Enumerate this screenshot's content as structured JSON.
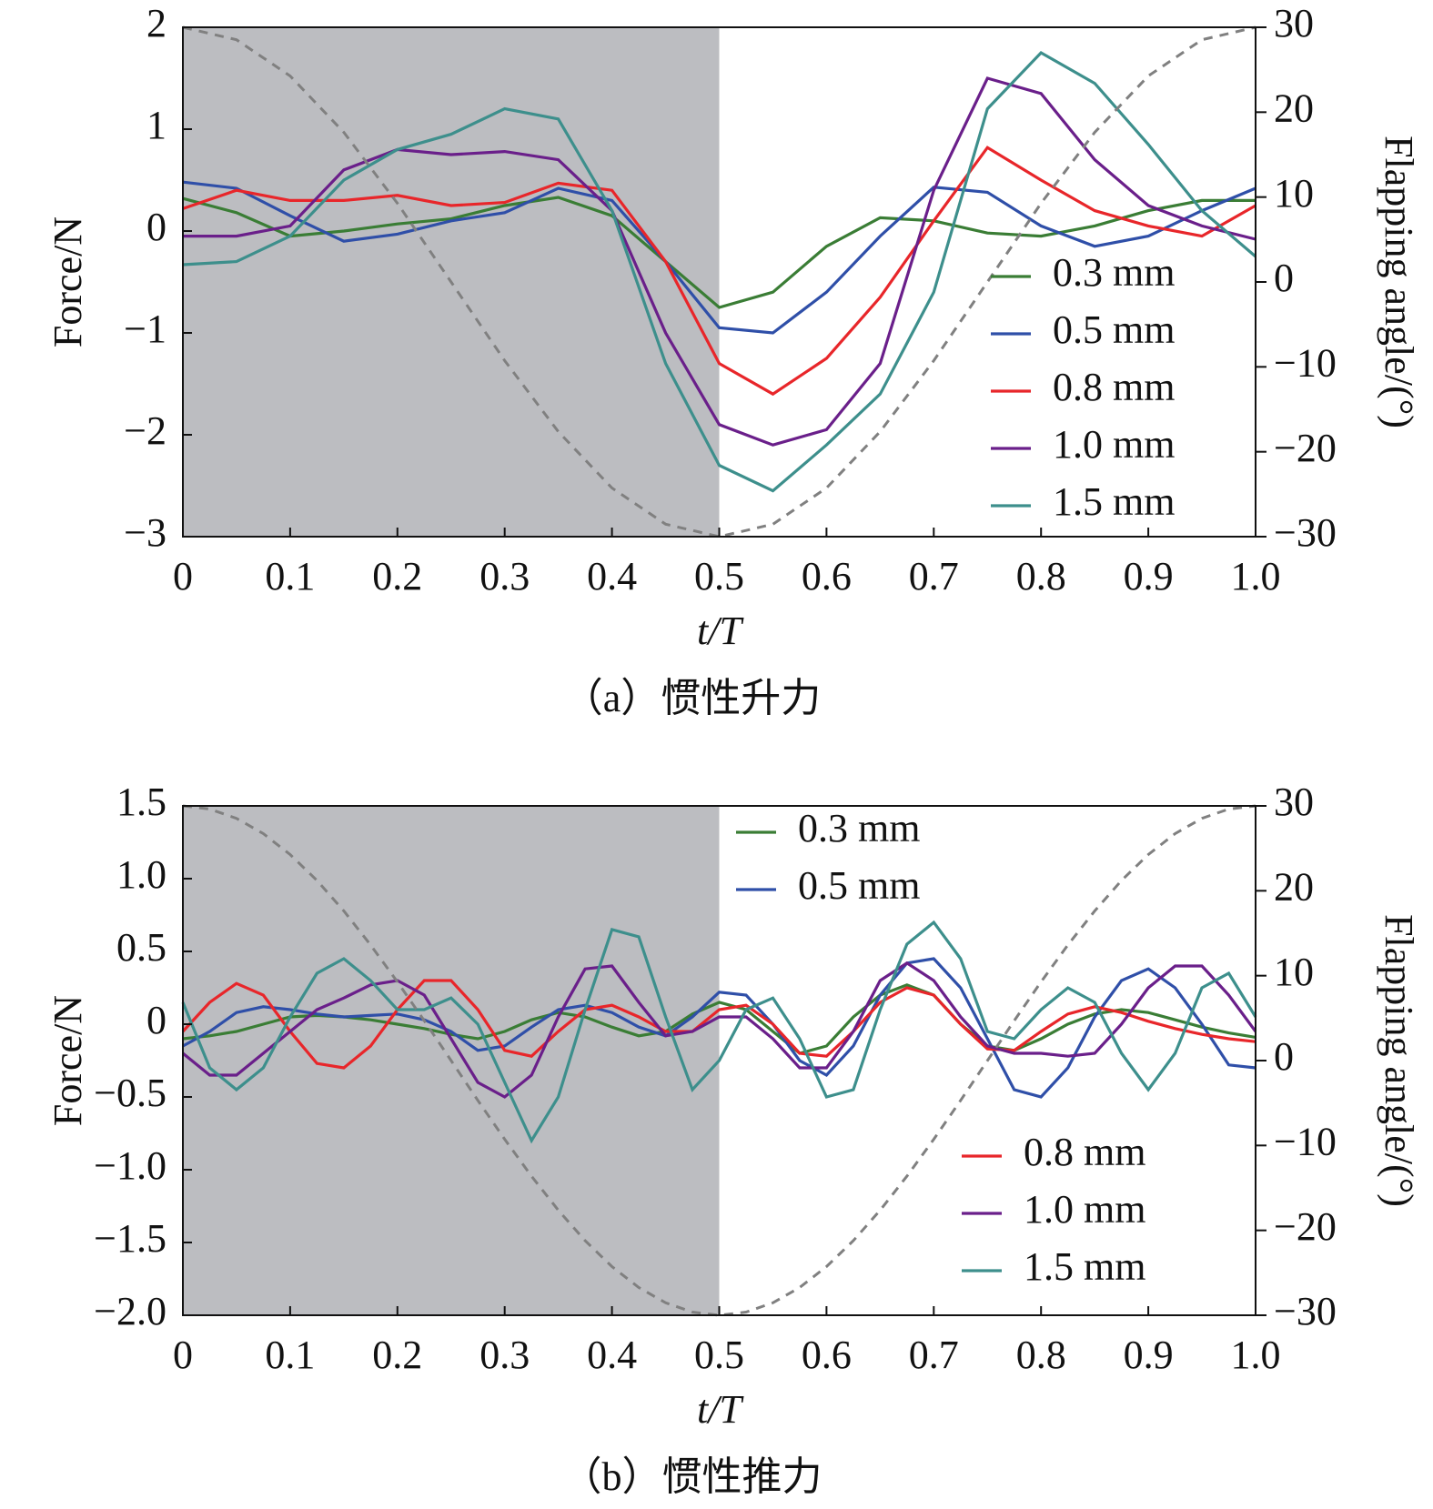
{
  "chart_data": [
    {
      "type": "line",
      "caption": "（a）惯性升力",
      "xlabel": "t/T",
      "ylabel": "Force/N",
      "y2label": "Flapping angle/(°)",
      "x": [
        0,
        0.05,
        0.1,
        0.15,
        0.2,
        0.25,
        0.3,
        0.35,
        0.4,
        0.45,
        0.5,
        0.55,
        0.6,
        0.65,
        0.7,
        0.75,
        0.8,
        0.85,
        0.9,
        0.95,
        1.0
      ],
      "xlim": [
        0,
        1
      ],
      "xticks": [
        0,
        0.1,
        0.2,
        0.3,
        0.4,
        0.5,
        0.6,
        0.7,
        0.8,
        0.9,
        {
          "value": 1,
          "label": "1.0"
        }
      ],
      "ylim": [
        -3,
        2
      ],
      "yticks": [
        {
          "value": -3,
          "label": "−3"
        },
        {
          "value": -2,
          "label": "−2"
        },
        {
          "value": -1,
          "label": "−1"
        },
        0,
        1,
        2
      ],
      "y2lim": [
        -30,
        30
      ],
      "y2ticks": [
        {
          "value": -30,
          "label": "−30"
        },
        {
          "value": -20,
          "label": "−20"
        },
        {
          "value": -10,
          "label": "−10"
        },
        0,
        10,
        20,
        30
      ],
      "shaded_xrange": [
        0,
        0.5
      ],
      "shade_color": "#bcbdc1",
      "series": [
        {
          "name": "0.3 mm",
          "color": "#3a7d35",
          "values": [
            0.32,
            0.18,
            -0.05,
            0.0,
            0.07,
            0.12,
            0.25,
            0.33,
            0.15,
            -0.3,
            -0.75,
            -0.6,
            -0.15,
            0.13,
            0.1,
            -0.02,
            -0.05,
            0.05,
            0.2,
            0.3,
            0.3
          ]
        },
        {
          "name": "0.5 mm",
          "color": "#2f4fa8",
          "values": [
            0.48,
            0.42,
            0.15,
            -0.1,
            -0.03,
            0.1,
            0.18,
            0.42,
            0.3,
            -0.3,
            -0.95,
            -1.0,
            -0.6,
            -0.05,
            0.43,
            0.38,
            0.05,
            -0.15,
            -0.05,
            0.2,
            0.42
          ]
        },
        {
          "name": "0.8 mm",
          "color": "#e8262a",
          "values": [
            0.22,
            0.4,
            0.3,
            0.3,
            0.35,
            0.25,
            0.28,
            0.47,
            0.4,
            -0.3,
            -1.3,
            -1.6,
            -1.25,
            -0.65,
            0.1,
            0.82,
            0.5,
            0.2,
            0.05,
            -0.05,
            0.25
          ]
        },
        {
          "name": "1.0 mm",
          "color": "#6a1f8a",
          "values": [
            -0.05,
            -0.05,
            0.05,
            0.6,
            0.8,
            0.75,
            0.78,
            0.7,
            0.2,
            -1.0,
            -1.9,
            -2.1,
            -1.95,
            -1.3,
            0.4,
            1.5,
            1.35,
            0.7,
            0.25,
            0.05,
            -0.08
          ]
        },
        {
          "name": "1.5 mm",
          "color": "#3d8f8c",
          "values": [
            -0.33,
            -0.3,
            -0.05,
            0.5,
            0.8,
            0.95,
            1.2,
            1.1,
            0.2,
            -1.3,
            -2.3,
            -2.55,
            -2.1,
            -1.6,
            -0.6,
            1.2,
            1.75,
            1.45,
            0.85,
            0.2,
            -0.25
          ]
        },
        {
          "axis": "y2",
          "color": "#808080",
          "dashed": true,
          "values": [
            30,
            28.53,
            24.27,
            17.63,
            9.27,
            0,
            -9.27,
            -17.63,
            -24.27,
            -28.53,
            -30,
            -28.53,
            -24.27,
            -17.63,
            -9.27,
            0,
            9.27,
            17.63,
            24.27,
            28.53,
            30
          ]
        }
      ]
    },
    {
      "type": "line",
      "caption": "（b）惯性推力",
      "xlabel": "t/T",
      "ylabel": "Force/N",
      "y2label": "Flapping angle/(°)",
      "x": [
        0,
        0.025,
        0.05,
        0.075,
        0.1,
        0.125,
        0.15,
        0.175,
        0.2,
        0.225,
        0.25,
        0.275,
        0.3,
        0.325,
        0.35,
        0.375,
        0.4,
        0.425,
        0.45,
        0.475,
        0.5,
        0.525,
        0.55,
        0.575,
        0.6,
        0.625,
        0.65,
        0.675,
        0.7,
        0.725,
        0.75,
        0.775,
        0.8,
        0.825,
        0.85,
        0.875,
        0.9,
        0.925,
        0.95,
        0.975,
        1.0
      ],
      "xlim": [
        0,
        1
      ],
      "xticks": [
        0,
        0.1,
        0.2,
        0.3,
        0.4,
        0.5,
        0.6,
        0.7,
        0.8,
        0.9,
        {
          "value": 1,
          "label": "1.0"
        }
      ],
      "ylim": [
        -2,
        1.5
      ],
      "yticks": [
        {
          "value": -2,
          "label": "−2.0"
        },
        {
          "value": -1.5,
          "label": "−1.5"
        },
        {
          "value": -1,
          "label": "−1.0"
        },
        {
          "value": -0.5,
          "label": "−0.5"
        },
        0,
        0.5,
        {
          "value": 1,
          "label": "1.0"
        },
        1.5
      ],
      "y2lim": [
        -30,
        30
      ],
      "y2ticks": [
        {
          "value": -30,
          "label": "−30"
        },
        {
          "value": -20,
          "label": "−20"
        },
        {
          "value": -10,
          "label": "−10"
        },
        0,
        10,
        20,
        30
      ],
      "shaded_xrange": [
        0,
        0.5
      ],
      "shade_color": "#bcbdc1",
      "series": [
        {
          "name": "0.3 mm",
          "color": "#3a7d35",
          "values": [
            -0.1,
            -0.08,
            -0.05,
            0.0,
            0.05,
            0.06,
            0.05,
            0.03,
            0.0,
            -0.03,
            -0.07,
            -0.1,
            -0.05,
            0.03,
            0.08,
            0.05,
            -0.02,
            -0.08,
            -0.05,
            0.07,
            0.15,
            0.1,
            -0.05,
            -0.2,
            -0.15,
            0.05,
            0.2,
            0.27,
            0.2,
            0.0,
            -0.15,
            -0.18,
            -0.1,
            0.0,
            0.07,
            0.1,
            0.08,
            0.03,
            -0.02,
            -0.06,
            -0.09
          ]
        },
        {
          "name": "0.5 mm",
          "color": "#2f4fa8",
          "values": [
            -0.15,
            -0.05,
            0.08,
            0.12,
            0.1,
            0.07,
            0.05,
            0.06,
            0.07,
            0.03,
            -0.05,
            -0.18,
            -0.15,
            -0.02,
            0.1,
            0.13,
            0.08,
            -0.02,
            -0.08,
            0.05,
            0.22,
            0.2,
            0.0,
            -0.25,
            -0.35,
            -0.15,
            0.2,
            0.42,
            0.45,
            0.25,
            -0.1,
            -0.45,
            -0.5,
            -0.3,
            0.05,
            0.3,
            0.38,
            0.25,
            0.0,
            -0.28,
            -0.3
          ]
        },
        {
          "name": "0.8 mm",
          "color": "#e8262a",
          "values": [
            -0.05,
            0.15,
            0.28,
            0.2,
            -0.05,
            -0.27,
            -0.3,
            -0.15,
            0.1,
            0.3,
            0.3,
            0.1,
            -0.18,
            -0.22,
            -0.05,
            0.1,
            0.13,
            0.05,
            -0.05,
            -0.05,
            0.1,
            0.13,
            0.0,
            -0.2,
            -0.22,
            -0.05,
            0.15,
            0.25,
            0.2,
            0.0,
            -0.17,
            -0.18,
            -0.05,
            0.07,
            0.12,
            0.08,
            0.02,
            -0.03,
            -0.07,
            -0.1,
            -0.12
          ]
        },
        {
          "name": "1.0 mm",
          "color": "#6a1f8a",
          "values": [
            -0.2,
            -0.35,
            -0.35,
            -0.2,
            -0.05,
            0.1,
            0.18,
            0.27,
            0.3,
            0.2,
            -0.1,
            -0.4,
            -0.5,
            -0.35,
            0.05,
            0.38,
            0.4,
            0.15,
            -0.08,
            -0.05,
            0.05,
            0.05,
            -0.1,
            -0.3,
            -0.3,
            -0.05,
            0.3,
            0.42,
            0.3,
            0.05,
            -0.15,
            -0.2,
            -0.2,
            -0.22,
            -0.2,
            0.0,
            0.25,
            0.4,
            0.4,
            0.2,
            -0.05
          ]
        },
        {
          "name": "1.5 mm",
          "color": "#3d8f8c",
          "values": [
            0.15,
            -0.3,
            -0.45,
            -0.3,
            0.05,
            0.35,
            0.45,
            0.3,
            0.1,
            0.1,
            0.18,
            0.0,
            -0.4,
            -0.8,
            -0.5,
            0.1,
            0.65,
            0.6,
            0.05,
            -0.45,
            -0.25,
            0.1,
            0.18,
            -0.1,
            -0.5,
            -0.45,
            0.1,
            0.55,
            0.7,
            0.45,
            -0.05,
            -0.1,
            0.1,
            0.25,
            0.15,
            -0.2,
            -0.45,
            -0.2,
            0.25,
            0.35,
            0.05
          ]
        },
        {
          "axis": "y2",
          "color": "#808080",
          "dashed": true,
          "values": [
            30,
            29.63,
            28.53,
            26.73,
            24.27,
            21.21,
            17.63,
            13.62,
            9.27,
            4.69,
            0,
            -4.69,
            -9.27,
            -13.62,
            -17.63,
            -21.21,
            -24.27,
            -26.73,
            -28.53,
            -29.63,
            -30,
            -29.63,
            -28.53,
            -26.73,
            -24.27,
            -21.21,
            -17.63,
            -13.62,
            -9.27,
            -4.69,
            0,
            4.69,
            9.27,
            13.62,
            17.63,
            21.21,
            24.27,
            26.73,
            28.53,
            29.63,
            30
          ]
        }
      ]
    }
  ]
}
